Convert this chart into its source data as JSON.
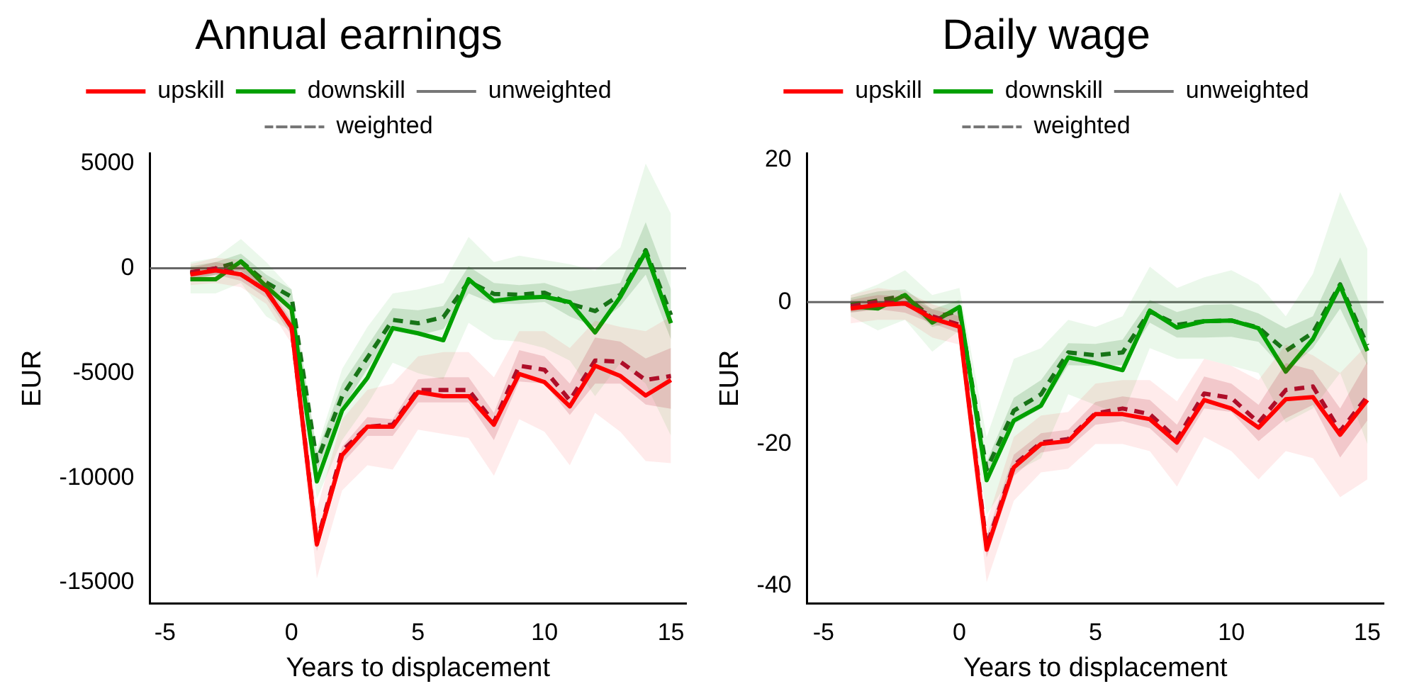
{
  "chart_data": [
    {
      "type": "line",
      "title": "Annual earnings",
      "xlabel": "Years to displacement",
      "ylabel": "EUR",
      "x": [
        -4,
        -3,
        -2,
        -1,
        0,
        1,
        2,
        3,
        4,
        5,
        6,
        7,
        8,
        9,
        10,
        11,
        12,
        13,
        14,
        15
      ],
      "xlim": [
        -5.6,
        15.6
      ],
      "xticks": [
        -5,
        0,
        5,
        10,
        15
      ],
      "ylim": [
        -16000,
        5500
      ],
      "yticks": [
        -15000,
        -10000,
        -5000,
        0,
        5000
      ],
      "grid": false,
      "legend": "top",
      "marker": "none",
      "annotations": [
        "unweighted",
        "weighted"
      ],
      "ref_lines": [
        {
          "axis": "y",
          "value": 0,
          "color": "#666666"
        }
      ],
      "series": [
        {
          "name": "upskill",
          "color": "#ff0000",
          "line_style": "solid",
          "values": [
            -290,
            -100,
            -290,
            -1070,
            -2810,
            -13180,
            -8920,
            -7560,
            -7560,
            -5910,
            -6100,
            -6100,
            -7460,
            -5040,
            -5430,
            -6590,
            -4650,
            -5140,
            -6070,
            -5330
          ],
          "lower": [
            -800,
            -700,
            -900,
            -1700,
            -3600,
            -14800,
            -10600,
            -9400,
            -9600,
            -7700,
            -7900,
            -8100,
            -9900,
            -7200,
            -7800,
            -9400,
            -6900,
            -7800,
            -9200,
            -9300
          ],
          "upper": [
            200,
            500,
            400,
            -500,
            -2000,
            -11500,
            -7200,
            -5800,
            -5500,
            -4200,
            -4000,
            -4000,
            -5200,
            -3000,
            -3000,
            -3800,
            -2500,
            -2800,
            -3000,
            -2300
          ]
        },
        {
          "color": "#a8102e",
          "line_style": "dashed",
          "values": [
            -190,
            0,
            -290,
            -1070,
            -2810,
            -13080,
            -8720,
            -7560,
            -7460,
            -5810,
            -5810,
            -5810,
            -7360,
            -4650,
            -4840,
            -6300,
            -4400,
            -4460,
            -5330,
            -5140
          ],
          "lower": [
            -500,
            -300,
            -600,
            -1400,
            -3200,
            -13500,
            -9300,
            -8000,
            -8000,
            -6400,
            -6400,
            -6400,
            -8200,
            -5400,
            -5500,
            -7000,
            -5500,
            -5500,
            -6500,
            -6700
          ],
          "upper": [
            0,
            300,
            100,
            -700,
            -2500,
            -12700,
            -8500,
            -7100,
            -7200,
            -5300,
            -5200,
            -5200,
            -6900,
            -3900,
            -4200,
            -5500,
            -3300,
            -3500,
            -4300,
            -3800
          ]
        },
        {
          "name": "downskill",
          "color": "#00a000",
          "line_style": "solid",
          "values": [
            -520,
            -520,
            330,
            -870,
            -1940,
            -10170,
            -6780,
            -5230,
            -2850,
            -3100,
            -3430,
            -520,
            -1550,
            -1410,
            -1360,
            -1610,
            -3060,
            -1360,
            780,
            -2620
          ],
          "lower": [
            -1200,
            -1200,
            -700,
            -2300,
            -3000,
            -11000,
            -8200,
            -6500,
            -4500,
            -5000,
            -5300,
            -2600,
            -3400,
            -3500,
            -3800,
            -4400,
            -6100,
            -4500,
            -5500,
            -8000
          ],
          "upper": [
            300,
            500,
            1400,
            300,
            -1000,
            -8600,
            -4800,
            -2800,
            -1200,
            -1000,
            -700,
            1500,
            300,
            600,
            400,
            200,
            -100,
            1000,
            5000,
            2600
          ]
        },
        {
          "color": "#1a701a",
          "line_style": "dashed",
          "values": [
            -250,
            0,
            330,
            -680,
            -1360,
            -9210,
            -6100,
            -4260,
            -2460,
            -2620,
            -2330,
            -640,
            -1220,
            -1260,
            -1160,
            -1690,
            -2040,
            -1260,
            870,
            -2230
          ],
          "lower": [
            -600,
            -300,
            -100,
            -1100,
            -1800,
            -9700,
            -6700,
            -4800,
            -3000,
            -3200,
            -2900,
            -1200,
            -1700,
            -1700,
            -1600,
            -2300,
            -2800,
            -1800,
            -300,
            -3400
          ],
          "upper": [
            100,
            300,
            700,
            -300,
            -1000,
            -8800,
            -5500,
            -3700,
            -1900,
            -2000,
            -1800,
            100,
            -700,
            -800,
            -700,
            -1100,
            -900,
            -700,
            2200,
            -1000
          ]
        }
      ]
    },
    {
      "type": "line",
      "title": "Daily wage",
      "xlabel": "Years to displacement",
      "ylabel": "EUR",
      "x": [
        -4,
        -3,
        -2,
        -1,
        0,
        1,
        2,
        3,
        4,
        5,
        6,
        7,
        8,
        9,
        10,
        11,
        12,
        13,
        14,
        15
      ],
      "xlim": [
        -5.6,
        15.6
      ],
      "xticks": [
        -5,
        0,
        5,
        10,
        15
      ],
      "ylim": [
        -42.5,
        21
      ],
      "yticks": [
        -40,
        -20,
        0,
        20
      ],
      "grid": false,
      "legend": "top",
      "marker": "none",
      "annotations": [
        "unweighted",
        "weighted"
      ],
      "ref_lines": [
        {
          "axis": "y",
          "value": 0,
          "color": "#666666"
        }
      ],
      "series": [
        {
          "name": "upskill",
          "color": "#ff0000",
          "line_style": "solid",
          "values": [
            -0.9,
            -0.4,
            -0.2,
            -2.3,
            -3.5,
            -34.9,
            -23.3,
            -20,
            -19.6,
            -15.8,
            -15.8,
            -16.5,
            -19.8,
            -13.8,
            -15,
            -17.7,
            -13.7,
            -13.4,
            -18.7,
            -13.8
          ],
          "lower": [
            -3,
            -2.5,
            -2.5,
            -5,
            -6,
            -39.5,
            -28,
            -24,
            -23.5,
            -20,
            -20,
            -21,
            -26,
            -19,
            -21,
            -25,
            -21,
            -22,
            -27.5,
            -25
          ],
          "upper": [
            1,
            2,
            1.5,
            -0.3,
            -1.5,
            -31,
            -19,
            -16,
            -15.5,
            -11.5,
            -11,
            -11,
            -14,
            -8,
            -9,
            -11,
            -6,
            -7.5,
            -10,
            -6
          ]
        },
        {
          "color": "#a8102e",
          "line_style": "dashed",
          "values": [
            -0.6,
            0,
            -0.2,
            -2,
            -3.2,
            -34.4,
            -23,
            -19.8,
            -19.3,
            -15.7,
            -15,
            -15.8,
            -19.3,
            -12.9,
            -13.5,
            -17,
            -12.4,
            -11.9,
            -18.2,
            -13.3
          ],
          "lower": [
            -1.5,
            -1,
            -1.5,
            -3,
            -4.4,
            -36,
            -24.5,
            -21.2,
            -20.6,
            -17.3,
            -16.8,
            -17.8,
            -21.3,
            -15,
            -15.5,
            -19.6,
            -16.4,
            -14.5,
            -21.9,
            -16.7
          ],
          "upper": [
            0.3,
            1,
            0.8,
            -1,
            -2,
            -33,
            -21.5,
            -18.5,
            -18,
            -14.1,
            -13.3,
            -13.8,
            -17.3,
            -10.5,
            -11.5,
            -14.5,
            -8.6,
            -9.6,
            -15,
            -8.4
          ]
        },
        {
          "name": "downskill",
          "color": "#00a000",
          "line_style": "solid",
          "values": [
            -0.6,
            -0.9,
            1,
            -2.9,
            -0.7,
            -25.1,
            -16.7,
            -14.6,
            -7.8,
            -8.6,
            -9.6,
            -1.2,
            -3.6,
            -2.7,
            -2.6,
            -3.7,
            -9.8,
            -5.2,
            2.3,
            -6.9
          ],
          "lower": [
            -2,
            -4,
            -2.5,
            -7,
            -4,
            -30,
            -24,
            -22,
            -13,
            -14.5,
            -16,
            -6.5,
            -8,
            -8,
            -9,
            -10,
            -17,
            -15,
            -10,
            -20
          ],
          "upper": [
            1,
            2.5,
            4.5,
            1,
            2,
            -19,
            -8,
            -6.5,
            -2.5,
            -3.5,
            -2,
            5,
            2,
            3.5,
            4.5,
            2.5,
            -2,
            4,
            15.5,
            7.5
          ]
        },
        {
          "color": "#1a701a",
          "line_style": "dashed",
          "values": [
            -0.4,
            0.2,
            0.9,
            -2.3,
            -1.2,
            -23.6,
            -15.3,
            -13,
            -7.1,
            -7.5,
            -7.1,
            -1.3,
            -3.2,
            -2.7,
            -2.6,
            -3.6,
            -6.9,
            -4.3,
            2.5,
            -6.1
          ],
          "lower": [
            -1.4,
            -1,
            0,
            -3.5,
            -2.6,
            -25,
            -17.2,
            -15,
            -8.9,
            -9,
            -8.9,
            -2.9,
            -5,
            -5,
            -4.9,
            -5.6,
            -9.8,
            -6.5,
            -0.9,
            -8.9
          ],
          "upper": [
            0.6,
            1.5,
            1.8,
            -1,
            0.3,
            -22.5,
            -13.5,
            -11,
            -5.8,
            -5.9,
            -5.3,
            0.3,
            -1.4,
            -0.4,
            -0.3,
            -1.6,
            -3.7,
            -2,
            6.3,
            -2.6
          ]
        }
      ]
    }
  ]
}
